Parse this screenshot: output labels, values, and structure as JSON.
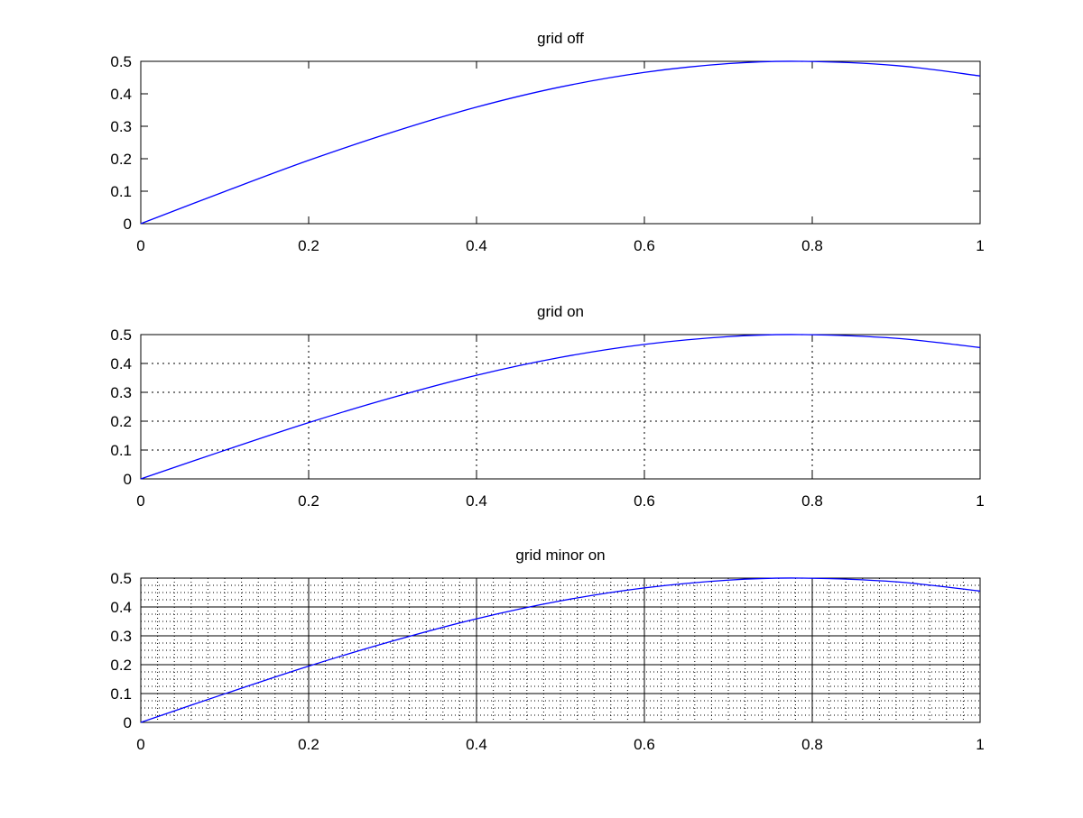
{
  "chart_data": [
    {
      "type": "line",
      "title": "grid off",
      "grid": "off",
      "xlim": [
        0,
        1
      ],
      "ylim": [
        0,
        0.5
      ],
      "xticks": [
        "0",
        "0.2",
        "0.4",
        "0.6",
        "0.8",
        "1"
      ],
      "yticks": [
        "0",
        "0.1",
        "0.2",
        "0.3",
        "0.4",
        "0.5"
      ],
      "series": [
        {
          "color": "#0000ff",
          "x": [
            0,
            0.1,
            0.2,
            0.3,
            0.4,
            0.5,
            0.6,
            0.7,
            0.785,
            0.9,
            1.0
          ],
          "y": [
            0,
            0.099,
            0.195,
            0.282,
            0.359,
            0.421,
            0.466,
            0.493,
            0.5,
            0.487,
            0.455
          ]
        }
      ]
    },
    {
      "type": "line",
      "title": "grid on",
      "grid": "major",
      "xlim": [
        0,
        1
      ],
      "ylim": [
        0,
        0.5
      ],
      "xticks": [
        "0",
        "0.2",
        "0.4",
        "0.6",
        "0.8",
        "1"
      ],
      "yticks": [
        "0",
        "0.1",
        "0.2",
        "0.3",
        "0.4",
        "0.5"
      ],
      "series": [
        {
          "color": "#0000ff",
          "x": [
            0,
            0.1,
            0.2,
            0.3,
            0.4,
            0.5,
            0.6,
            0.7,
            0.785,
            0.9,
            1.0
          ],
          "y": [
            0,
            0.099,
            0.195,
            0.282,
            0.359,
            0.421,
            0.466,
            0.493,
            0.5,
            0.487,
            0.455
          ]
        }
      ]
    },
    {
      "type": "line",
      "title": "grid minor on",
      "grid": "major+minor",
      "xlim": [
        0,
        1
      ],
      "ylim": [
        0,
        0.5
      ],
      "xticks": [
        "0",
        "0.2",
        "0.4",
        "0.6",
        "0.8",
        "1"
      ],
      "yticks": [
        "0",
        "0.1",
        "0.2",
        "0.3",
        "0.4",
        "0.5"
      ],
      "series": [
        {
          "color": "#0000ff",
          "x": [
            0,
            0.1,
            0.2,
            0.3,
            0.4,
            0.5,
            0.6,
            0.7,
            0.785,
            0.9,
            1.0
          ],
          "y": [
            0,
            0.099,
            0.195,
            0.282,
            0.359,
            0.421,
            0.466,
            0.493,
            0.5,
            0.487,
            0.455
          ]
        }
      ]
    }
  ]
}
